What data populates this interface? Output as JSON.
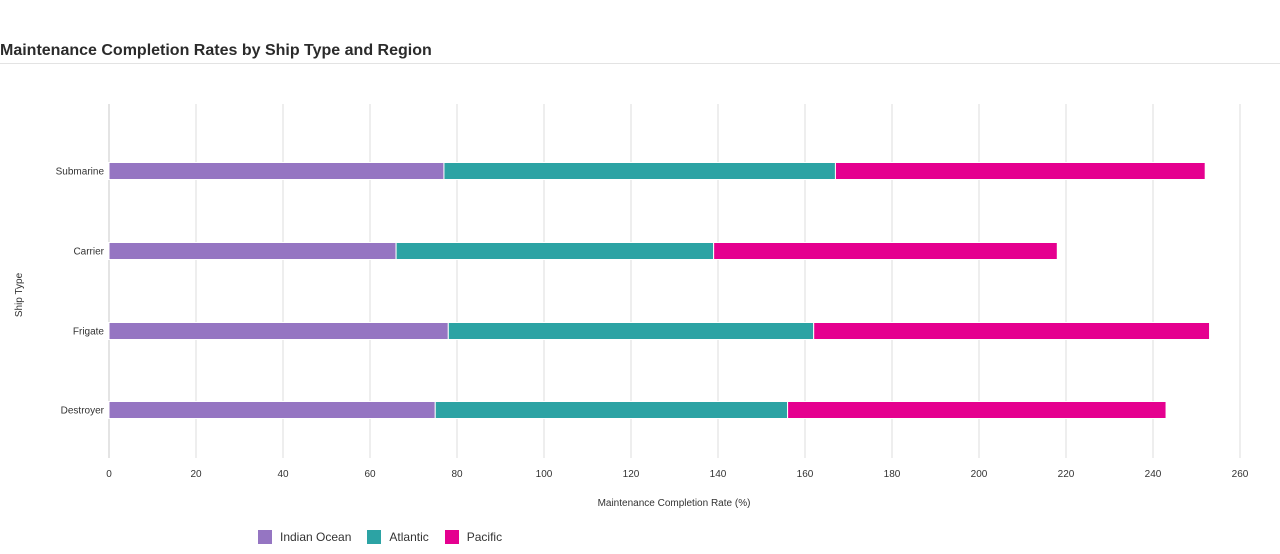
{
  "title": "Maintenance Completion Rates by Ship Type and Region",
  "chart_data": {
    "type": "bar",
    "orientation": "horizontal",
    "stacked": true,
    "title": "Maintenance Completion Rates by Ship Type and Region",
    "xlabel": "Maintenance Completion Rate (%)",
    "ylabel": "Ship Type",
    "xlim": [
      0,
      260
    ],
    "xticks": [
      0,
      20,
      40,
      60,
      80,
      100,
      120,
      140,
      160,
      180,
      200,
      220,
      240,
      260
    ],
    "grid": "vertical",
    "legend_position": "bottom-left",
    "categories": [
      "Submarine",
      "Carrier",
      "Frigate",
      "Destroyer"
    ],
    "series": [
      {
        "name": "Indian Ocean",
        "color": "#9575c2",
        "values": [
          77,
          66,
          78,
          75
        ]
      },
      {
        "name": "Atlantic",
        "color": "#2ca3a4",
        "values": [
          90,
          73,
          84,
          81
        ]
      },
      {
        "name": "Pacific",
        "color": "#e5008f",
        "values": [
          85,
          79,
          91,
          87
        ]
      }
    ]
  }
}
